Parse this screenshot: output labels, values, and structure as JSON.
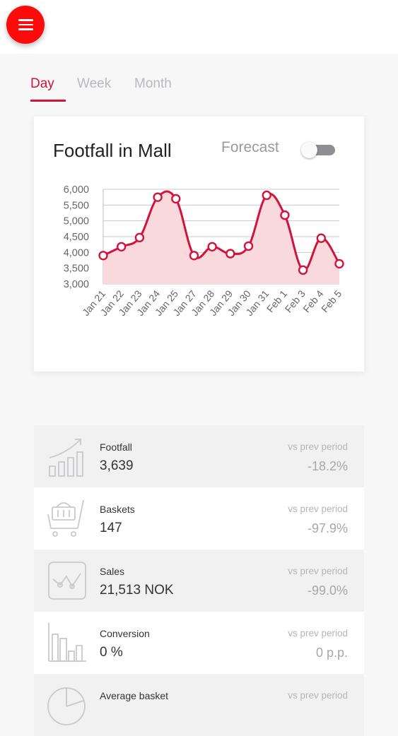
{
  "menu": {
    "icon": "hamburger-menu-icon"
  },
  "tabs": [
    {
      "label": "Day",
      "active": true
    },
    {
      "label": "Week",
      "active": false
    },
    {
      "label": "Month",
      "active": false
    }
  ],
  "card": {
    "title": "Footfall in Mall",
    "forecast_label": "Forecast",
    "forecast_on": false
  },
  "chart_data": {
    "type": "area",
    "categories": [
      "Jan 21",
      "Jan 22",
      "Jan 23",
      "Jan 24",
      "Jan 25",
      "Jan 27",
      "Jan 28",
      "Jan 29",
      "Jan 30",
      "Jan 31",
      "Feb 1",
      "Feb 3",
      "Feb 4",
      "Feb 5"
    ],
    "values": [
      3900,
      4180,
      4470,
      5750,
      5700,
      3900,
      4180,
      3960,
      4200,
      5810,
      5180,
      3440,
      4450,
      3640
    ],
    "ylim": [
      3000,
      6000
    ],
    "yticks": [
      3000,
      3500,
      4000,
      4500,
      5000,
      5500,
      6000
    ],
    "ytick_labels": [
      "3,000",
      "3,500",
      "4,000",
      "4,500",
      "5,000",
      "5,500",
      "6,000"
    ],
    "grid": true,
    "line_color": "#d2133a",
    "fill_color": "#f9d9dc"
  },
  "stats": [
    {
      "icon": "rising-bar-chart-icon",
      "label": "Footfall",
      "value": "3,639",
      "vs": "vs prev period",
      "delta": "-18.2%"
    },
    {
      "icon": "shopping-basket-cart-icon",
      "label": "Baskets",
      "value": "147",
      "vs": "vs prev period",
      "delta": "-97.9%"
    },
    {
      "icon": "sales-trend-icon",
      "label": "Sales",
      "value": "21,513 NOK",
      "vs": "vs prev period",
      "delta": "-99.0%"
    },
    {
      "icon": "conversion-bars-icon",
      "label": "Conversion",
      "value": "0 %",
      "vs": "vs prev period",
      "delta": "0 p.p."
    },
    {
      "icon": "pie-chart-icon",
      "label": "Average basket",
      "value": "",
      "vs": "vs prev period",
      "delta": ""
    }
  ],
  "colors": {
    "accent": "#d2133a",
    "menu_button": "#ff0a0a"
  }
}
